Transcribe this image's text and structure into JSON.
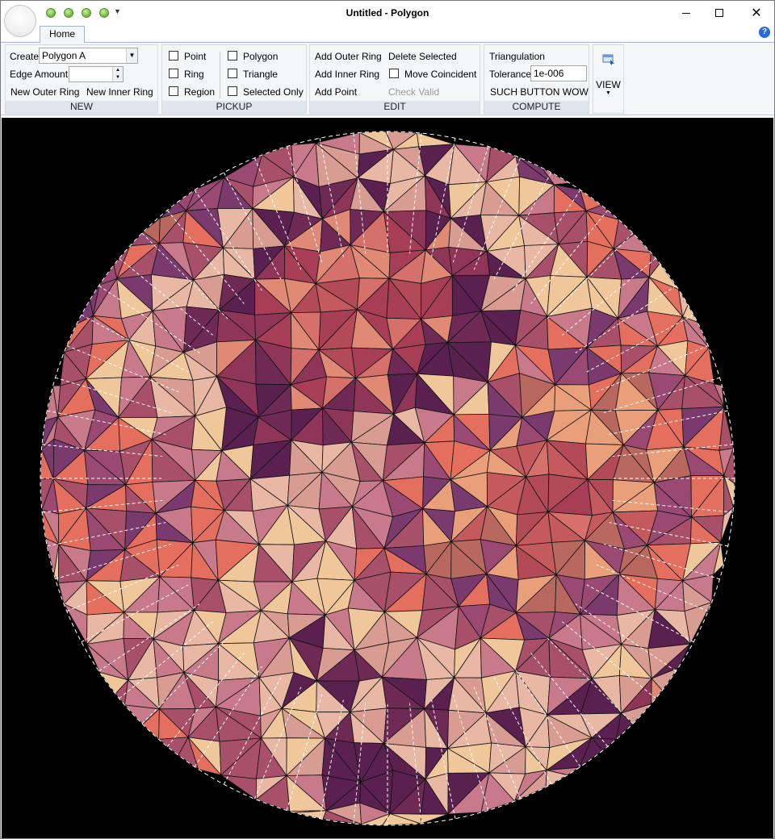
{
  "window": {
    "title": "Untitled - Polygon",
    "close_glyph": "✕"
  },
  "tabs": [
    {
      "label": "Home"
    }
  ],
  "help_glyph": "?",
  "ribbon": {
    "new": {
      "label": "NEW",
      "create_label": "Create",
      "create_value": "Polygon A",
      "edge_amount_label": "Edge Amount",
      "edge_amount_value": "",
      "new_outer_ring": "New Outer Ring",
      "new_inner_ring": "New Inner Ring"
    },
    "pickup": {
      "label": "PICKUP",
      "point": "Point",
      "ring": "Ring",
      "region": "Region",
      "polygon": "Polygon",
      "triangle": "Triangle",
      "selected_only": "Selected Only"
    },
    "edit": {
      "label": "EDIT",
      "add_outer_ring": "Add Outer Ring",
      "add_inner_ring": "Add Inner Ring",
      "add_point": "Add Point",
      "delete_selected": "Delete Selected",
      "move_coincident": "Move Coincident",
      "check_valid": "Check Valid"
    },
    "compute": {
      "label": "COMPUTE",
      "triangulation": "Triangulation",
      "tolerance_label": "Tolerance",
      "tolerance_value": "1e-006",
      "such_button": "SUCH BUTTON WOW"
    },
    "view": {
      "label": "VIEW"
    }
  },
  "palette": {
    "canvas_bg": "#000000",
    "mesh_colors": [
      "#c55a5e",
      "#b24a58",
      "#d6706a",
      "#a83e55",
      "#e08a76",
      "#8e3558",
      "#6e2a55",
      "#5a2150",
      "#d99c93",
      "#e9b8a5",
      "#f0c79a",
      "#c97a8a",
      "#a8506a",
      "#e56f5f",
      "#7a3a6e",
      "#9a4a72",
      "#b8685f",
      "#e9a07a"
    ]
  }
}
